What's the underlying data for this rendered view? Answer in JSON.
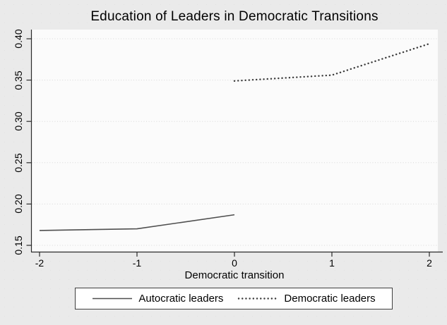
{
  "figure": {
    "title": "Education of Leaders in Democratic Transitions"
  },
  "chart_data": {
    "type": "line",
    "title": "Education of Leaders in Democratic Transitions",
    "xlabel": "Democratic transition",
    "ylabel": "",
    "xlim": [
      -2,
      2
    ],
    "ylim": [
      0.15,
      0.4
    ],
    "x_ticks": [
      -2,
      -1,
      0,
      1,
      2
    ],
    "x_tick_labels": [
      "-2",
      "-1",
      "0",
      "1",
      "2"
    ],
    "y_ticks": [
      0.4,
      0.35,
      0.3,
      0.25,
      0.2,
      0.15
    ],
    "y_tick_labels": [
      "0.40",
      "0.35",
      "0.30",
      "0.25",
      "0.20",
      "0.15"
    ],
    "grid": "horizontal-dotted",
    "legend_position": "bottom-center",
    "series": [
      {
        "name": "Autocratic leaders",
        "line_style": "solid",
        "color": "#4f4f4f",
        "x": [
          -2,
          -1,
          0
        ],
        "values": [
          0.168,
          0.17,
          0.187
        ]
      },
      {
        "name": "Democratic leaders",
        "line_style": "dotted",
        "color": "#3b3b3b",
        "x": [
          0,
          1,
          2
        ],
        "values": [
          0.349,
          0.356,
          0.394
        ]
      }
    ]
  },
  "colors": {
    "canvas_bg": "#eaeaea",
    "plot_bg": "#fbfbfb",
    "grid": "#d8d8d8",
    "axis": "#2a2a2a",
    "text": "#000000",
    "legend_bg": "#ffffff",
    "legend_border": "#3f3f3f"
  }
}
